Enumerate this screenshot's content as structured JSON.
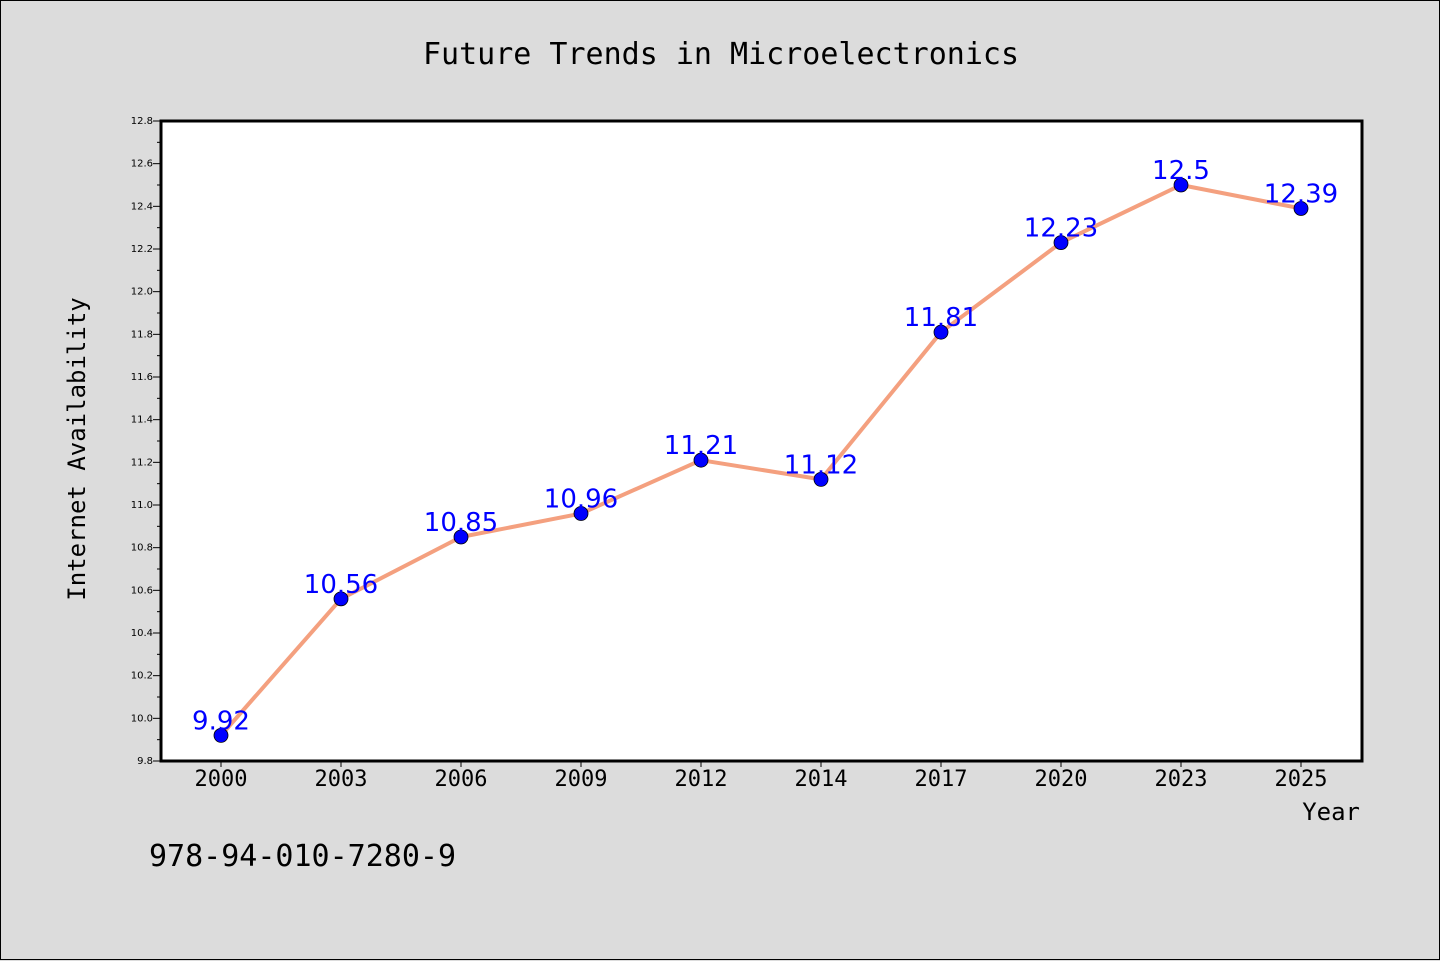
{
  "chart_data": {
    "type": "line",
    "title": "Future Trends in Microelectronics",
    "xlabel": "Year",
    "ylabel": "Internet Availability",
    "categories": [
      "2000",
      "2003",
      "2006",
      "2009",
      "2012",
      "2014",
      "2017",
      "2020",
      "2023",
      "2025"
    ],
    "series": [
      {
        "values": [
          9.92,
          10.56,
          10.85,
          10.96,
          11.21,
          11.12,
          11.81,
          12.23,
          12.5,
          12.39
        ]
      }
    ],
    "data_labels": [
      "9.92",
      "10.56",
      "10.85",
      "10.96",
      "11.21",
      "11.12",
      "11.81",
      "12.23",
      "12.5",
      "12.39"
    ],
    "ylim": [
      9.8,
      12.8
    ],
    "yticks": [
      "9.8",
      "10.0",
      "10.2",
      "10.4",
      "10.6",
      "10.8",
      "11.0",
      "11.2",
      "11.4",
      "11.6",
      "11.8",
      "12.0",
      "12.2",
      "12.4",
      "12.6",
      "12.8"
    ],
    "grid": false,
    "colors": {
      "line": "#f4a07f",
      "marker": "#0000ff",
      "label": "#0000ff",
      "background": "#dcdcdc",
      "plot_area": "#ffffff"
    }
  },
  "footer_note": "978-94-010-7280-9"
}
